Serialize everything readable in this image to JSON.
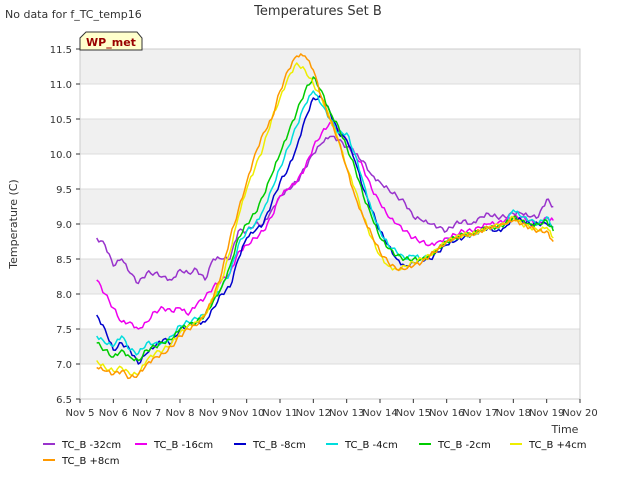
{
  "no_data_note": "No data for f_TC_temp16",
  "badge": "WP_met",
  "chart_data": {
    "type": "line",
    "title": "Temperatures Set B",
    "xlabel": "Time",
    "ylabel": "Temperature (C)",
    "xlim": [
      5,
      20
    ],
    "ylim": [
      6.5,
      11.5
    ],
    "x_ticks": [
      5,
      6,
      7,
      8,
      9,
      10,
      11,
      12,
      13,
      14,
      15,
      16,
      17,
      18,
      19,
      20
    ],
    "x_tick_labels": [
      "Nov 5",
      "Nov 6",
      "Nov 7",
      "Nov 8",
      "Nov 9",
      "Nov 10",
      "Nov 11",
      "Nov 12",
      "Nov 13",
      "Nov 14",
      "Nov 15",
      "Nov 16",
      "Nov 17",
      "Nov 18",
      "Nov 19",
      "Nov 20"
    ],
    "y_ticks": [
      6.5,
      7.0,
      7.5,
      8.0,
      8.5,
      9.0,
      9.5,
      10.0,
      10.5,
      11.0,
      11.5
    ],
    "y_tick_labels": [
      "6.5",
      "7.0",
      "7.5",
      "8.0",
      "8.5",
      "9.0",
      "9.5",
      "10.0",
      "10.5",
      "11.0",
      "11.5"
    ],
    "grid": true,
    "legend_position": "bottom",
    "series": [
      {
        "name": "TC_B -32cm",
        "color": "#9933cc",
        "x": [
          5.5,
          5.75,
          6.0,
          6.25,
          6.5,
          6.75,
          7.0,
          7.25,
          7.5,
          7.75,
          8.0,
          8.25,
          8.5,
          8.75,
          9.0,
          9.25,
          9.5,
          9.75,
          10.0,
          10.25,
          10.5,
          10.75,
          11.0,
          11.25,
          11.5,
          11.75,
          12.0,
          12.25,
          12.5,
          12.75,
          13.0,
          13.25,
          13.5,
          13.75,
          14.0,
          14.25,
          14.5,
          14.75,
          15.0,
          15.25,
          15.5,
          15.75,
          16.0,
          16.25,
          16.5,
          16.75,
          17.0,
          17.25,
          17.5,
          17.75,
          18.0,
          18.25,
          18.5,
          18.75,
          19.0,
          19.2
        ],
        "y": [
          8.8,
          8.7,
          8.4,
          8.5,
          8.3,
          8.15,
          8.3,
          8.3,
          8.25,
          8.2,
          8.35,
          8.3,
          8.35,
          8.2,
          8.5,
          8.5,
          8.5,
          8.9,
          8.9,
          9.0,
          9.0,
          9.2,
          9.4,
          9.5,
          9.6,
          9.8,
          10.0,
          10.15,
          10.25,
          10.2,
          10.1,
          10.0,
          9.9,
          9.7,
          9.6,
          9.5,
          9.4,
          9.3,
          9.1,
          9.05,
          9.0,
          8.95,
          8.9,
          9.0,
          9.05,
          9.0,
          9.1,
          9.15,
          9.1,
          9.1,
          9.15,
          9.15,
          9.1,
          9.1,
          9.35,
          9.25
        ]
      },
      {
        "name": "TC_B -16cm",
        "color": "#ee00ee",
        "x": [
          5.5,
          5.75,
          6.0,
          6.25,
          6.5,
          6.75,
          7.0,
          7.25,
          7.5,
          7.75,
          8.0,
          8.25,
          8.5,
          8.75,
          9.0,
          9.25,
          9.5,
          9.75,
          10.0,
          10.25,
          10.5,
          10.75,
          11.0,
          11.25,
          11.5,
          11.75,
          12.0,
          12.25,
          12.5,
          12.75,
          13.0,
          13.25,
          13.5,
          13.75,
          14.0,
          14.25,
          14.5,
          14.75,
          15.0,
          15.25,
          15.5,
          15.75,
          16.0,
          16.25,
          16.5,
          16.75,
          17.0,
          17.25,
          17.5,
          17.75,
          18.0,
          18.25,
          18.5,
          18.75,
          19.0,
          19.2
        ],
        "y": [
          8.2,
          8.0,
          7.8,
          7.6,
          7.6,
          7.5,
          7.6,
          7.75,
          7.8,
          7.75,
          7.8,
          7.7,
          7.85,
          7.95,
          8.1,
          8.2,
          8.3,
          8.6,
          8.7,
          8.8,
          8.9,
          9.1,
          9.4,
          9.5,
          9.6,
          9.8,
          10.1,
          10.3,
          10.45,
          10.35,
          10.2,
          10.0,
          9.8,
          9.5,
          9.3,
          9.1,
          9.0,
          8.9,
          8.8,
          8.75,
          8.7,
          8.75,
          8.8,
          8.85,
          8.9,
          8.9,
          8.95,
          9.0,
          9.0,
          9.05,
          9.1,
          9.1,
          9.05,
          9.0,
          9.1,
          9.05
        ]
      },
      {
        "name": "TC_B -8cm",
        "color": "#0000cc",
        "x": [
          5.5,
          5.75,
          6.0,
          6.25,
          6.5,
          6.75,
          7.0,
          7.25,
          7.5,
          7.75,
          8.0,
          8.25,
          8.5,
          8.75,
          9.0,
          9.25,
          9.5,
          9.75,
          10.0,
          10.25,
          10.5,
          10.75,
          11.0,
          11.25,
          11.5,
          11.75,
          12.0,
          12.25,
          12.5,
          12.75,
          13.0,
          13.25,
          13.5,
          13.75,
          14.0,
          14.25,
          14.5,
          14.75,
          15.0,
          15.25,
          15.5,
          15.75,
          16.0,
          16.25,
          16.5,
          16.75,
          17.0,
          17.25,
          17.5,
          17.75,
          18.0,
          18.25,
          18.5,
          18.75,
          19.0,
          19.2
        ],
        "y": [
          7.7,
          7.5,
          7.2,
          7.3,
          7.2,
          7.0,
          7.15,
          7.25,
          7.35,
          7.3,
          7.5,
          7.55,
          7.6,
          7.6,
          7.8,
          8.0,
          8.1,
          8.5,
          8.8,
          8.9,
          9.0,
          9.3,
          9.6,
          9.8,
          10.1,
          10.5,
          10.8,
          10.8,
          10.6,
          10.3,
          10.2,
          9.9,
          9.5,
          9.2,
          8.9,
          8.7,
          8.5,
          8.4,
          8.45,
          8.5,
          8.5,
          8.6,
          8.7,
          8.75,
          8.8,
          8.85,
          8.9,
          8.95,
          8.9,
          8.95,
          9.1,
          9.05,
          9.0,
          9.0,
          9.0,
          8.95
        ]
      },
      {
        "name": "TC_B -4cm",
        "color": "#00dddd",
        "x": [
          5.5,
          5.75,
          6.0,
          6.25,
          6.5,
          6.75,
          7.0,
          7.25,
          7.5,
          7.75,
          8.0,
          8.25,
          8.5,
          8.75,
          9.0,
          9.25,
          9.5,
          9.75,
          10.0,
          10.25,
          10.5,
          10.75,
          11.0,
          11.25,
          11.5,
          11.75,
          12.0,
          12.25,
          12.5,
          12.75,
          13.0,
          13.25,
          13.5,
          13.75,
          14.0,
          14.25,
          14.5,
          14.75,
          15.0,
          15.25,
          15.5,
          15.75,
          16.0,
          16.25,
          16.5,
          16.75,
          17.0,
          17.25,
          17.5,
          17.75,
          18.0,
          18.25,
          18.5,
          18.75,
          19.0,
          19.2
        ],
        "y": [
          7.4,
          7.3,
          7.25,
          7.4,
          7.2,
          7.15,
          7.3,
          7.3,
          7.3,
          7.4,
          7.55,
          7.6,
          7.65,
          7.7,
          7.9,
          8.1,
          8.3,
          8.7,
          8.9,
          9.0,
          9.2,
          9.5,
          9.8,
          10.1,
          10.4,
          10.7,
          10.9,
          10.7,
          10.5,
          10.3,
          10.3,
          10.0,
          9.6,
          9.2,
          8.9,
          8.7,
          8.6,
          8.5,
          8.55,
          8.5,
          8.55,
          8.65,
          8.75,
          8.8,
          8.85,
          8.85,
          8.9,
          8.95,
          8.95,
          9.0,
          9.2,
          9.1,
          9.05,
          9.0,
          9.1,
          8.95
        ]
      },
      {
        "name": "TC_B -2cm",
        "color": "#00cc00",
        "x": [
          5.5,
          5.75,
          6.0,
          6.25,
          6.5,
          6.75,
          7.0,
          7.25,
          7.5,
          7.75,
          8.0,
          8.25,
          8.5,
          8.75,
          9.0,
          9.25,
          9.5,
          9.75,
          10.0,
          10.25,
          10.5,
          10.75,
          11.0,
          11.25,
          11.5,
          11.75,
          12.0,
          12.25,
          12.5,
          12.75,
          13.0,
          13.25,
          13.5,
          13.75,
          14.0,
          14.25,
          14.5,
          14.75,
          15.0,
          15.25,
          15.5,
          15.75,
          16.0,
          16.25,
          16.5,
          16.75,
          17.0,
          17.25,
          17.5,
          17.75,
          18.0,
          18.25,
          18.5,
          18.75,
          19.0,
          19.2
        ],
        "y": [
          7.3,
          7.2,
          7.1,
          7.2,
          7.1,
          7.05,
          7.2,
          7.25,
          7.3,
          7.35,
          7.5,
          7.55,
          7.6,
          7.7,
          7.9,
          8.1,
          8.4,
          8.8,
          9.0,
          9.15,
          9.4,
          9.7,
          10.0,
          10.3,
          10.6,
          10.9,
          11.1,
          10.9,
          10.6,
          10.4,
          10.1,
          9.8,
          9.4,
          9.1,
          8.8,
          8.65,
          8.55,
          8.5,
          8.5,
          8.5,
          8.55,
          8.65,
          8.75,
          8.8,
          8.85,
          8.85,
          8.9,
          8.95,
          8.95,
          9.0,
          9.1,
          9.05,
          9.0,
          9.0,
          9.05,
          8.9
        ]
      },
      {
        "name": "TC_B +4cm",
        "color": "#eeee00",
        "x": [
          5.5,
          5.75,
          6.0,
          6.25,
          6.5,
          6.75,
          7.0,
          7.25,
          7.5,
          7.75,
          8.0,
          8.25,
          8.5,
          8.75,
          9.0,
          9.25,
          9.5,
          9.75,
          10.0,
          10.25,
          10.5,
          10.75,
          11.0,
          11.25,
          11.5,
          11.75,
          12.0,
          12.25,
          12.5,
          12.75,
          13.0,
          13.25,
          13.5,
          13.75,
          14.0,
          14.25,
          14.5,
          14.75,
          15.0,
          15.25,
          15.5,
          15.75,
          16.0,
          16.25,
          16.5,
          16.75,
          17.0,
          17.25,
          17.5,
          17.75,
          18.0,
          18.25,
          18.5,
          18.75,
          19.0,
          19.2
        ],
        "y": [
          7.05,
          6.95,
          6.9,
          6.95,
          6.85,
          6.85,
          7.05,
          7.15,
          7.2,
          7.3,
          7.45,
          7.55,
          7.6,
          7.7,
          7.95,
          8.2,
          8.6,
          9.1,
          9.5,
          9.8,
          10.1,
          10.5,
          10.8,
          11.1,
          11.3,
          11.2,
          11.0,
          10.8,
          10.5,
          10.2,
          9.8,
          9.5,
          9.1,
          8.8,
          8.55,
          8.4,
          8.35,
          8.4,
          8.45,
          8.5,
          8.55,
          8.65,
          8.75,
          8.8,
          8.85,
          8.85,
          8.9,
          8.95,
          9.0,
          9.0,
          9.1,
          9.0,
          8.95,
          8.9,
          8.95,
          8.8
        ]
      },
      {
        "name": "TC_B +8cm",
        "color": "#ff9900",
        "x": [
          5.5,
          5.75,
          6.0,
          6.25,
          6.5,
          6.75,
          7.0,
          7.25,
          7.5,
          7.75,
          8.0,
          8.25,
          8.5,
          8.75,
          9.0,
          9.25,
          9.5,
          9.75,
          10.0,
          10.25,
          10.5,
          10.75,
          11.0,
          11.25,
          11.5,
          11.75,
          12.0,
          12.25,
          12.5,
          12.75,
          13.0,
          13.25,
          13.5,
          13.75,
          14.0,
          14.25,
          14.5,
          14.75,
          15.0,
          15.25,
          15.5,
          15.75,
          16.0,
          16.25,
          16.5,
          16.75,
          17.0,
          17.25,
          17.5,
          17.75,
          18.0,
          18.25,
          18.5,
          18.75,
          19.0,
          19.2
        ],
        "y": [
          6.95,
          6.9,
          6.85,
          6.9,
          6.8,
          6.85,
          7.0,
          7.1,
          7.15,
          7.25,
          7.4,
          7.5,
          7.55,
          7.7,
          7.95,
          8.3,
          8.8,
          9.2,
          9.6,
          10.0,
          10.3,
          10.5,
          10.9,
          11.2,
          11.4,
          11.4,
          11.2,
          10.8,
          10.5,
          10.2,
          9.8,
          9.4,
          9.1,
          8.85,
          8.6,
          8.45,
          8.35,
          8.35,
          8.4,
          8.45,
          8.55,
          8.65,
          8.75,
          8.8,
          8.85,
          8.85,
          8.9,
          8.95,
          8.95,
          9.0,
          9.05,
          9.0,
          8.95,
          8.9,
          8.9,
          8.75
        ]
      }
    ]
  }
}
